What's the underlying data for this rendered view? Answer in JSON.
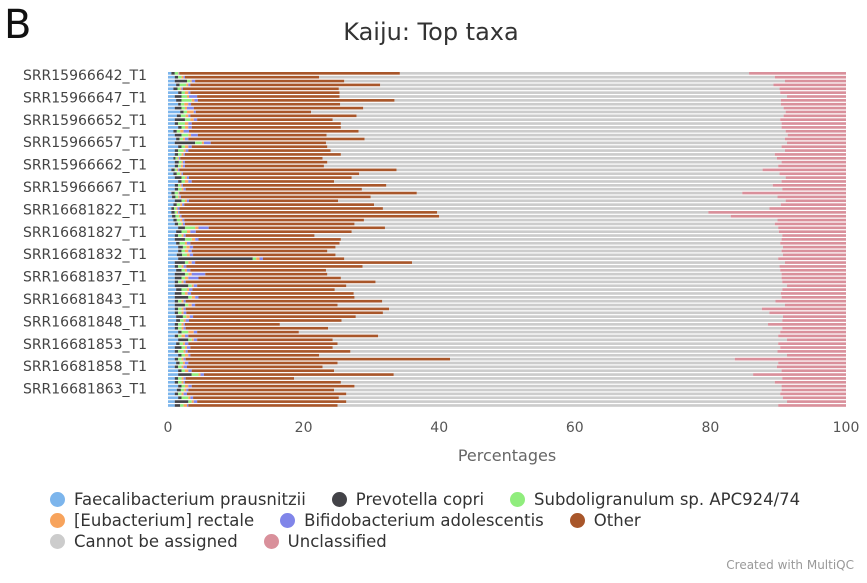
{
  "panel_label": "B",
  "credit": "Created with MultiQC",
  "chart_data": {
    "type": "bar",
    "orientation": "horizontal",
    "stacked": true,
    "title": "Kaiju: Top taxa",
    "xlabel": "Percentages",
    "ylabel": "",
    "xlim": [
      0,
      100
    ],
    "xticks": [
      0,
      20,
      40,
      60,
      80,
      100
    ],
    "grid": false,
    "legend_position": "bottom",
    "y_tick_labels": [
      "SRR15966642_T1",
      "SRR15966647_T1",
      "SRR15966652_T1",
      "SRR15966657_T1",
      "SRR15966662_T1",
      "SRR15966667_T1",
      "SRR16681822_T1",
      "SRR16681827_T1",
      "SRR16681832_T1",
      "SRR16681837_T1",
      "SRR16681843_T1",
      "SRR16681848_T1",
      "SRR16681853_T1",
      "SRR16681858_T1",
      "SRR16681863_T1"
    ],
    "legend_rows": [
      [
        0,
        1,
        2
      ],
      [
        3,
        4,
        5
      ],
      [
        6,
        7
      ]
    ],
    "series": [
      {
        "name": "Faecalibacterium prausnitzii",
        "color": "#7cb5ec"
      },
      {
        "name": "Prevotella copri",
        "color": "#434348"
      },
      {
        "name": "Subdoligranulum sp. APC924/74",
        "color": "#90ed7d"
      },
      {
        "name": "[Eubacterium] rectale",
        "color": "#f7a35c"
      },
      {
        "name": "Bifidobacterium adolescentis",
        "color": "#8085e9"
      },
      {
        "name": "Other",
        "color": "#a8562a"
      },
      {
        "name": "Cannot be assigned",
        "color": "#cccccc"
      },
      {
        "name": "Unclassified",
        "color": "#d9909b"
      }
    ],
    "rows": [
      [
        0.5,
        0.5,
        0.5,
        0.1,
        0.1,
        32.5,
        51.5,
        14.3
      ],
      [
        1.0,
        0.5,
        0.5,
        0.3,
        0.2,
        19.8,
        67.2,
        10.5
      ],
      [
        1.0,
        1.8,
        0.5,
        0.2,
        0.5,
        22.0,
        65.0,
        9.0
      ],
      [
        1.2,
        0.5,
        1.0,
        0.3,
        0.3,
        28.0,
        58.0,
        10.7
      ],
      [
        0.8,
        0.6,
        0.4,
        0.2,
        0.2,
        23.0,
        65.0,
        9.8
      ],
      [
        1.5,
        0.5,
        0.5,
        0.5,
        0.3,
        22.0,
        65.0,
        9.7
      ],
      [
        1.0,
        1.0,
        0.8,
        0.3,
        1.2,
        21.0,
        66.0,
        8.7
      ],
      [
        1.2,
        0.8,
        1.5,
        0.4,
        0.5,
        29.0,
        57.0,
        9.6
      ],
      [
        1.5,
        0.4,
        0.5,
        0.6,
        0.4,
        22.0,
        65.0,
        9.6
      ],
      [
        1.0,
        1.0,
        0.5,
        0.3,
        1.0,
        25.0,
        62.0,
        9.2
      ],
      [
        1.8,
        0.5,
        0.5,
        1.0,
        0.3,
        17.0,
        70.0,
        8.9
      ],
      [
        1.3,
        0.6,
        0.7,
        0.4,
        0.3,
        24.5,
        63.0,
        9.2
      ],
      [
        1.0,
        1.5,
        0.8,
        0.5,
        0.5,
        20.0,
        66.0,
        9.7
      ],
      [
        1.0,
        0.5,
        1.0,
        0.5,
        0.5,
        22.0,
        65.0,
        9.5
      ],
      [
        1.5,
        0.5,
        0.5,
        0.5,
        0.5,
        22.0,
        65.0,
        9.5
      ],
      [
        0.8,
        0.5,
        0.5,
        0.5,
        0.8,
        25.0,
        63.0,
        8.9
      ],
      [
        1.0,
        1.0,
        1.0,
        0.4,
        1.0,
        19.0,
        68.0,
        8.6
      ],
      [
        1.2,
        0.5,
        0.5,
        0.3,
        0.5,
        26.0,
        62.0,
        9.0
      ],
      [
        1.0,
        3.0,
        1.0,
        0.3,
        1.0,
        17.0,
        68.0,
        8.7
      ],
      [
        1.5,
        0.5,
        0.5,
        0.5,
        0.5,
        20.0,
        67.0,
        9.5
      ],
      [
        1.0,
        0.5,
        0.8,
        0.3,
        0.4,
        21.0,
        67.0,
        9.0
      ],
      [
        1.0,
        0.5,
        0.5,
        0.3,
        0.2,
        23.0,
        64.0,
        10.5
      ],
      [
        0.8,
        0.3,
        0.3,
        0.2,
        0.2,
        21.0,
        67.0,
        10.2
      ],
      [
        1.0,
        0.6,
        0.4,
        0.2,
        0.3,
        21.0,
        67.0,
        9.5
      ],
      [
        1.0,
        0.5,
        0.4,
        0.3,
        0.3,
        20.5,
        67.0,
        10.0
      ],
      [
        0.5,
        0.5,
        0.3,
        0.2,
        0.2,
        32.0,
        54.0,
        12.3
      ],
      [
        0.8,
        0.5,
        0.5,
        0.2,
        0.2,
        26.0,
        62.0,
        9.8
      ],
      [
        1.0,
        1.0,
        0.5,
        0.3,
        0.3,
        24.0,
        64.0,
        8.9
      ],
      [
        1.5,
        0.5,
        0.5,
        0.5,
        0.5,
        21.0,
        66.0,
        9.5
      ],
      [
        1.0,
        0.5,
        0.3,
        0.2,
        0.2,
        30.0,
        57.0,
        10.8
      ],
      [
        1.0,
        0.5,
        0.5,
        0.3,
        0.3,
        26.0,
        62.0,
        9.4
      ],
      [
        0.5,
        0.5,
        0.5,
        0.1,
        0.1,
        35.0,
        48.0,
        15.3
      ],
      [
        0.6,
        0.5,
        0.4,
        0.2,
        0.2,
        28.0,
        60.0,
        10.1
      ],
      [
        1.0,
        1.0,
        0.5,
        0.3,
        0.3,
        22.0,
        66.0,
        8.9
      ],
      [
        0.8,
        0.5,
        0.5,
        0.3,
        0.3,
        28.0,
        60.0,
        9.6
      ],
      [
        0.5,
        0.4,
        0.3,
        0.2,
        0.3,
        30.0,
        57.0,
        11.3
      ],
      [
        0.5,
        0.5,
        0.3,
        0.2,
        0.2,
        38.0,
        40.0,
        20.3
      ],
      [
        0.6,
        0.5,
        0.5,
        0.2,
        0.2,
        38.0,
        43.0,
        17.0
      ],
      [
        0.8,
        0.5,
        0.5,
        0.3,
        0.3,
        26.5,
        61.0,
        10.1
      ],
      [
        1.0,
        0.5,
        0.5,
        0.2,
        0.3,
        25.0,
        62.0,
        10.5
      ],
      [
        1.5,
        1.0,
        1.5,
        0.5,
        1.5,
        26.0,
        58.0,
        10.0
      ],
      [
        1.2,
        0.8,
        0.8,
        0.5,
        0.8,
        23.0,
        63.0,
        9.9
      ],
      [
        1.0,
        0.5,
        0.5,
        0.3,
        0.3,
        19.0,
        69.0,
        9.4
      ],
      [
        1.0,
        1.5,
        1.0,
        0.5,
        0.5,
        21.0,
        65.0,
        9.5
      ],
      [
        1.2,
        0.5,
        0.8,
        0.3,
        0.5,
        22.0,
        65.0,
        9.7
      ],
      [
        1.5,
        0.7,
        0.5,
        0.5,
        0.5,
        21.0,
        66.0,
        9.3
      ],
      [
        1.5,
        0.5,
        0.5,
        0.5,
        0.5,
        20.0,
        67.0,
        9.5
      ],
      [
        1.3,
        0.8,
        0.7,
        0.4,
        0.5,
        21.0,
        66.0,
        9.3
      ],
      [
        1.5,
        11.0,
        0.5,
        0.5,
        0.5,
        12.0,
        64.0,
        10.0
      ],
      [
        1.0,
        1.5,
        0.5,
        0.5,
        0.5,
        32.0,
        55.0,
        9.0
      ],
      [
        1.0,
        0.5,
        0.5,
        0.3,
        0.4,
        26.0,
        61.5,
        9.8
      ],
      [
        1.2,
        0.8,
        0.5,
        0.3,
        0.5,
        20.0,
        67.0,
        9.7
      ],
      [
        1.0,
        1.5,
        0.5,
        0.5,
        2.0,
        18.0,
        67.0,
        9.5
      ],
      [
        1.0,
        1.0,
        0.5,
        0.5,
        1.5,
        21.0,
        65.0,
        9.5
      ],
      [
        1.0,
        0.5,
        0.5,
        0.3,
        0.3,
        28.0,
        60.0,
        9.4
      ],
      [
        1.0,
        2.0,
        0.5,
        0.3,
        0.5,
        22.0,
        65.0,
        8.7
      ],
      [
        1.2,
        0.8,
        0.8,
        0.3,
        0.5,
        21.0,
        66.0,
        9.4
      ],
      [
        1.0,
        1.0,
        0.5,
        0.4,
        0.5,
        24.0,
        63.0,
        9.6
      ],
      [
        1.0,
        2.0,
        0.5,
        0.5,
        0.5,
        23.0,
        63.0,
        9.5
      ],
      [
        1.0,
        0.5,
        0.5,
        0.3,
        0.3,
        29.0,
        58.0,
        10.4
      ],
      [
        1.0,
        1.5,
        0.5,
        0.5,
        0.5,
        21.0,
        66.0,
        9.0
      ],
      [
        1.0,
        0.5,
        0.5,
        0.3,
        0.3,
        30.0,
        55.0,
        12.4
      ],
      [
        1.0,
        0.5,
        0.5,
        0.3,
        0.4,
        29.0,
        57.0,
        11.3
      ],
      [
        1.2,
        1.0,
        0.5,
        0.5,
        0.5,
        24.0,
        63.0,
        9.3
      ],
      [
        1.2,
        0.6,
        0.5,
        0.3,
        0.5,
        22.5,
        65.0,
        9.4
      ],
      [
        1.0,
        0.5,
        0.5,
        0.3,
        0.2,
        14.0,
        72.0,
        11.5
      ],
      [
        1.0,
        0.5,
        0.5,
        0.3,
        0.3,
        21.0,
        67.0,
        9.4
      ],
      [
        1.5,
        0.5,
        1.0,
        0.8,
        0.5,
        15.0,
        71.0,
        9.7
      ],
      [
        1.0,
        0.5,
        0.5,
        0.5,
        0.5,
        28.0,
        59.0,
        10.0
      ],
      [
        1.5,
        1.5,
        0.5,
        0.3,
        0.5,
        20.0,
        67.0,
        8.7
      ],
      [
        1.2,
        0.5,
        0.5,
        0.3,
        0.5,
        22.0,
        65.0,
        10.0
      ],
      [
        1.0,
        1.0,
        0.5,
        0.3,
        0.5,
        21.0,
        66.0,
        9.7
      ],
      [
        1.0,
        0.5,
        0.8,
        0.3,
        0.3,
        24.0,
        63.0,
        10.1
      ],
      [
        1.5,
        0.5,
        0.5,
        0.5,
        0.3,
        19.0,
        69.0,
        8.7
      ],
      [
        1.0,
        0.5,
        0.5,
        0.3,
        0.3,
        39.0,
        42.0,
        16.4
      ],
      [
        1.2,
        0.5,
        0.5,
        0.3,
        0.5,
        22.0,
        65.0,
        10.0
      ],
      [
        1.0,
        0.5,
        0.5,
        0.3,
        0.5,
        20.0,
        67.0,
        10.2
      ],
      [
        1.5,
        0.5,
        0.5,
        0.5,
        0.5,
        21.0,
        66.0,
        9.5
      ],
      [
        1.5,
        2.0,
        1.0,
        0.3,
        0.5,
        28.0,
        53.0,
        13.7
      ],
      [
        1.0,
        0.5,
        0.5,
        0.3,
        0.3,
        16.0,
        72.0,
        9.4
      ],
      [
        1.0,
        0.5,
        0.5,
        0.3,
        0.2,
        23.0,
        64.0,
        10.5
      ],
      [
        1.5,
        0.5,
        0.5,
        0.5,
        0.5,
        24.0,
        63.0,
        9.5
      ],
      [
        1.3,
        0.6,
        0.5,
        0.3,
        0.3,
        21.5,
        66.0,
        9.5
      ],
      [
        1.0,
        0.5,
        0.5,
        0.3,
        0.5,
        23.5,
        64.0,
        9.7
      ],
      [
        1.5,
        0.5,
        1.0,
        0.3,
        0.4,
        21.5,
        65.5,
        9.3
      ],
      [
        1.0,
        2.0,
        0.5,
        0.3,
        0.5,
        22.0,
        65.0,
        8.7
      ],
      [
        1.0,
        0.8,
        0.5,
        0.5,
        0.2,
        22.0,
        65.0,
        10.0
      ]
    ]
  }
}
